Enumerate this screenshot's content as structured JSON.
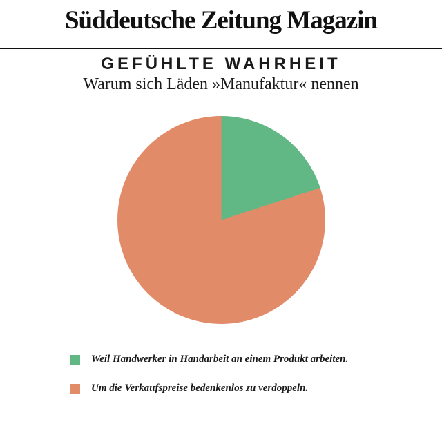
{
  "masthead": {
    "title": "Süddeutsche Zeitung Magazin"
  },
  "chart_data": {
    "type": "pie",
    "title": "GEFÜHLTE WAHRHEIT",
    "subtitle": "Warum sich Läden »Manufaktur« nennen",
    "unit": "percent",
    "start_angle_deg": 0,
    "direction": "clockwise",
    "legend_position": "bottom-left",
    "slices": [
      {
        "label": "Weil Handwerker in Handarbeit an einem Produkt arbeiten.",
        "value": 20,
        "color": "#61b885"
      },
      {
        "label": "Um die Verkaufspreise bedenkenlos zu verdoppeln.",
        "value": 80,
        "color": "#e28b68"
      }
    ]
  },
  "colors": {
    "background": "#ffffff",
    "text": "#111111",
    "rule": "#111111"
  }
}
